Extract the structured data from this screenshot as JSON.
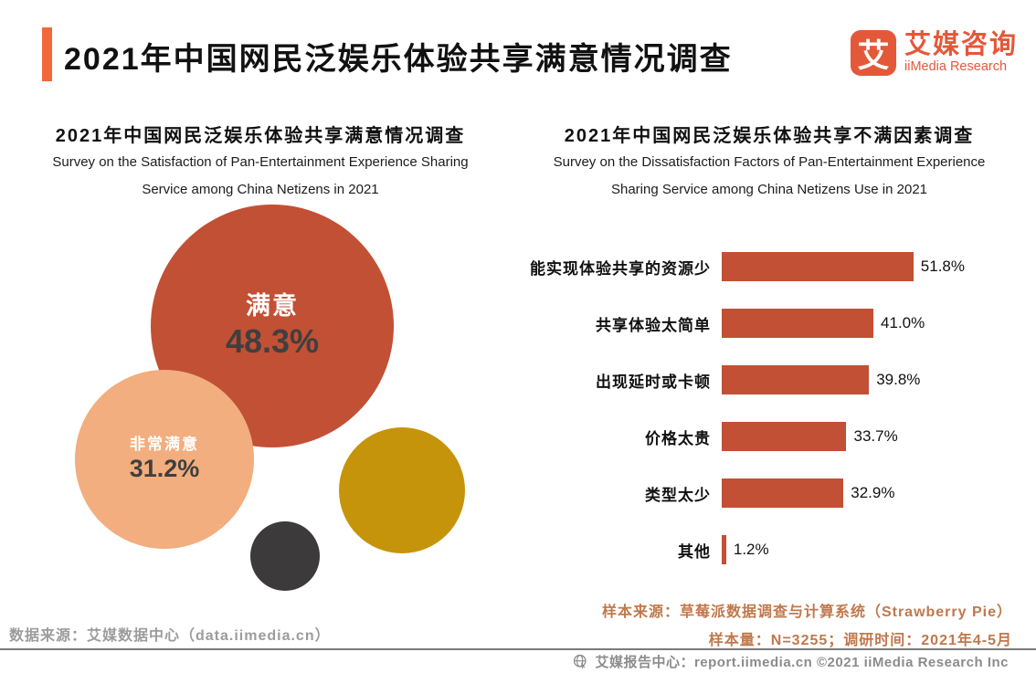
{
  "header": {
    "title": "2021年中国网民泛娱乐体验共享满意情况调查",
    "logo": {
      "mark": "艾",
      "name_cn": "艾媒咨询",
      "name_en": "iiMedia Research"
    }
  },
  "colors": {
    "accent_orange": "#F2683C",
    "logo_orange": "#E4583A",
    "primary_red": "#C25034",
    "light_orange": "#F2AE7F",
    "gold": "#C6940A",
    "dark_gray": "#3C3A3B",
    "source_text": "#C0784C",
    "muted_gray": "#9C9C9C",
    "footer_gray": "#8C8C8C"
  },
  "left_chart": {
    "title": "2021年中国网民泛娱乐体验共享满意情况调查",
    "subtitle_line1": "Survey on the Satisfaction of Pan-Entertainment Experience Sharing",
    "subtitle_line2": "Service among China Netizens in 2021",
    "source": "数据来源：艾媒数据中心（data.iimedia.cn）"
  },
  "right_chart": {
    "title": "2021年中国网民泛娱乐体验共享不满因素调查",
    "subtitle_line1": "Survey on the Dissatisfaction Factors of Pan-Entertainment Experience",
    "subtitle_line2": "Sharing Service among China Netizens Use in 2021",
    "sample_source": "样本来源：草莓派数据调查与计算系统（Strawberry Pie）",
    "sample_info": "样本量：N=3255；调研时间：2021年4-5月"
  },
  "footer": {
    "text": "艾媒报告中心：report.iimedia.cn ©2021  iiMedia Research  Inc"
  },
  "chart_data": [
    {
      "type": "bubble",
      "title": "2021年中国网民泛娱乐体验共享满意情况调查",
      "subtitle": "Survey on the Satisfaction of Pan-Entertainment Experience Sharing Service among China Netizens in 2021",
      "legend": "none",
      "axes": "none",
      "points": [
        {
          "label": "满意",
          "value": 48.3,
          "display": "48.3%",
          "color": "#C25034",
          "show_label": true
        },
        {
          "label": "非常满意",
          "value": 31.2,
          "display": "31.2%",
          "color": "#F2AE7F",
          "show_label": true
        },
        {
          "label": "",
          "value": null,
          "display": "",
          "color": "#C6940A",
          "show_label": false
        },
        {
          "label": "",
          "value": null,
          "display": "",
          "color": "#3C3A3B",
          "show_label": false
        }
      ]
    },
    {
      "type": "bar",
      "orientation": "horizontal",
      "title": "2021年中国网民泛娱乐体验共享不满因素调查",
      "subtitle": "Survey on the Dissatisfaction Factors of Pan-Entertainment Experience Sharing Service among China Netizens Use in 2021",
      "categories": [
        "能实现体验共享的资源少",
        "共享体验太简单",
        "出现延时或卡顿",
        "价格太贵",
        "类型太少",
        "其他"
      ],
      "values": [
        51.8,
        41.0,
        39.8,
        33.7,
        32.9,
        1.2
      ],
      "value_labels": [
        "51.8%",
        "41.0%",
        "39.8%",
        "33.7%",
        "32.9%",
        "1.2%"
      ],
      "bar_color": "#C25034",
      "xlim": [
        0,
        60
      ],
      "grid": false,
      "legend": "none"
    }
  ]
}
